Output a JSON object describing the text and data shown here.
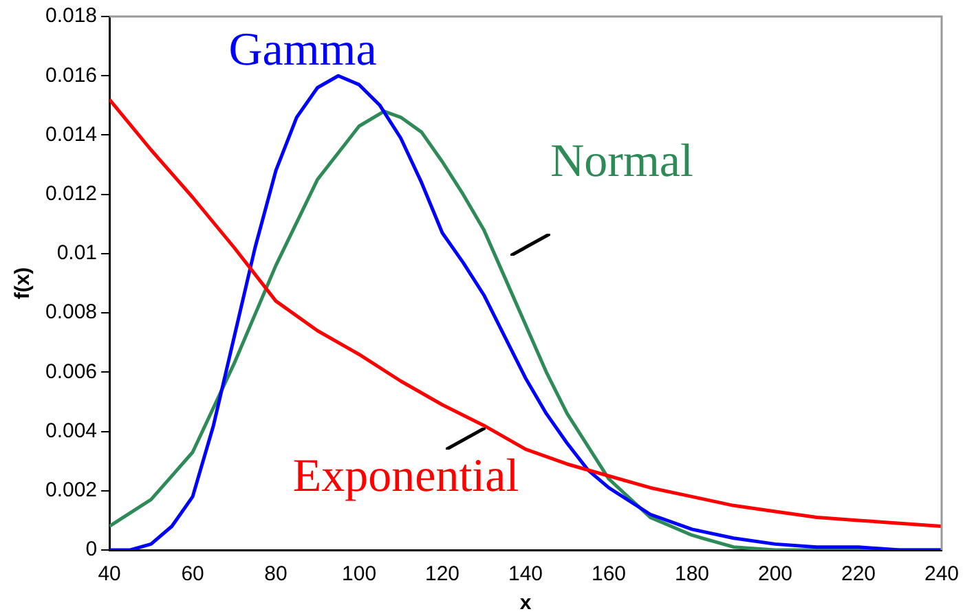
{
  "chart_data": {
    "type": "line",
    "xlabel": "x",
    "ylabel": "f(x)",
    "xlim": [
      40,
      240
    ],
    "xticks": [
      40,
      60,
      80,
      100,
      120,
      140,
      160,
      180,
      200,
      220,
      240
    ],
    "ylim": [
      0,
      0.018
    ],
    "yticks": [
      0,
      0.002,
      0.004,
      0.006,
      0.008,
      0.01,
      0.012,
      0.014,
      0.016,
      0.018
    ],
    "grid": false,
    "legend": false,
    "marker": "none",
    "line_style": "solid",
    "series": [
      {
        "name": "Exponential",
        "color": "#ff0000",
        "x": [
          40,
          50,
          60,
          70,
          80,
          90,
          100,
          110,
          120,
          130,
          140,
          150,
          160,
          170,
          180,
          190,
          200,
          210,
          220,
          230,
          240
        ],
        "values": [
          0.0152,
          0.0135,
          0.0119,
          0.0102,
          0.0084,
          0.0074,
          0.0066,
          0.0057,
          0.0049,
          0.0042,
          0.0034,
          0.0029,
          0.0025,
          0.0021,
          0.0018,
          0.0015,
          0.0013,
          0.0011,
          0.001,
          0.0009,
          0.0008
        ]
      },
      {
        "name": "Gamma",
        "color": "#0000ff",
        "x": [
          40,
          45,
          50,
          55,
          60,
          65,
          70,
          75,
          80,
          85,
          90,
          95,
          100,
          105,
          110,
          115,
          120,
          125,
          130,
          135,
          140,
          145,
          150,
          155,
          160,
          170,
          180,
          190,
          200,
          210,
          220,
          230,
          240
        ],
        "values": [
          0,
          0,
          0.0002,
          0.0008,
          0.0018,
          0.0042,
          0.0072,
          0.0102,
          0.0128,
          0.0146,
          0.0156,
          0.016,
          0.0157,
          0.015,
          0.0139,
          0.0124,
          0.0107,
          0.0097,
          0.0086,
          0.0072,
          0.0058,
          0.0046,
          0.0036,
          0.0027,
          0.0021,
          0.0012,
          0.0007,
          0.0004,
          0.0002,
          0.0001,
          0.0001,
          0,
          0
        ]
      },
      {
        "name": "Normal",
        "color": "#2e8b57",
        "x": [
          40,
          50,
          60,
          70,
          80,
          90,
          100,
          106,
          110,
          115,
          120,
          125,
          130,
          135,
          140,
          145,
          150,
          160,
          170,
          180,
          190,
          200,
          220,
          240
        ],
        "values": [
          0.0008,
          0.0017,
          0.0033,
          0.0063,
          0.0096,
          0.0125,
          0.0143,
          0.0148,
          0.0146,
          0.0141,
          0.0131,
          0.012,
          0.0108,
          0.0092,
          0.0076,
          0.006,
          0.0046,
          0.0024,
          0.0011,
          0.0005,
          0.0001,
          0,
          0,
          0
        ]
      }
    ]
  }
}
